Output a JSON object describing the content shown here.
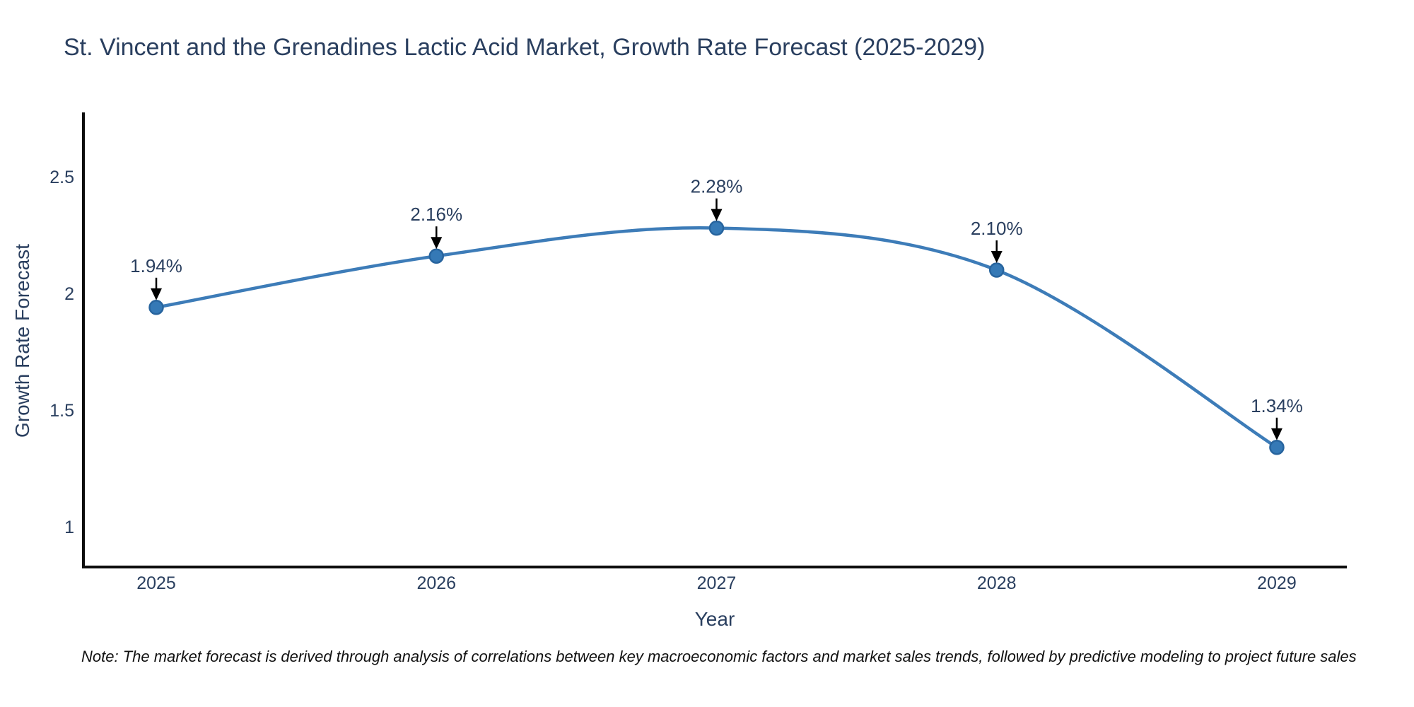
{
  "title": {
    "text": "St. Vincent and the Grenadines Lactic Acid Market, Growth Rate Forecast (2025-2029)",
    "color": "#2a3f5f"
  },
  "note": {
    "text": "Note: The market forecast is derived through analysis of correlations between key macroeconomic factors and market sales trends, followed by predictive modeling to project future sales"
  },
  "chart_data": {
    "type": "line",
    "title": "St. Vincent and the Grenadines Lactic Acid Market, Growth Rate Forecast (2025-2029)",
    "xlabel": "Year",
    "ylabel": "Growth Rate Forecast",
    "x": [
      2025,
      2026,
      2027,
      2028,
      2029
    ],
    "series": [
      {
        "name": "Growth Rate Forecast",
        "values": [
          1.94,
          2.16,
          2.28,
          2.1,
          1.34
        ]
      }
    ],
    "point_labels": [
      "1.94%",
      "2.16%",
      "2.28%",
      "2.10%",
      "1.34%"
    ],
    "xtick_values": [
      2025,
      2026,
      2027,
      2028,
      2029
    ],
    "xtick_labels": [
      "2025",
      "2026",
      "2027",
      "2028",
      "2029"
    ],
    "ytick_values": [
      1,
      1.5,
      2,
      2.5
    ],
    "ytick_labels": [
      "1",
      "1.5",
      "2",
      "2.5"
    ],
    "xlim": [
      2024.74,
      2029.25
    ],
    "ylim": [
      0.827,
      2.776
    ],
    "grid": false,
    "legend": "none",
    "line_shape": "spline",
    "colors": {
      "line": "#3d7cb8",
      "marker_fill": "#3579b6",
      "marker_stroke": "#27649e",
      "axis": "#0d0d0d",
      "tick_text": "#2a3f5f",
      "annotation_text": "#2a3f5f",
      "arrow": "#000000"
    }
  }
}
